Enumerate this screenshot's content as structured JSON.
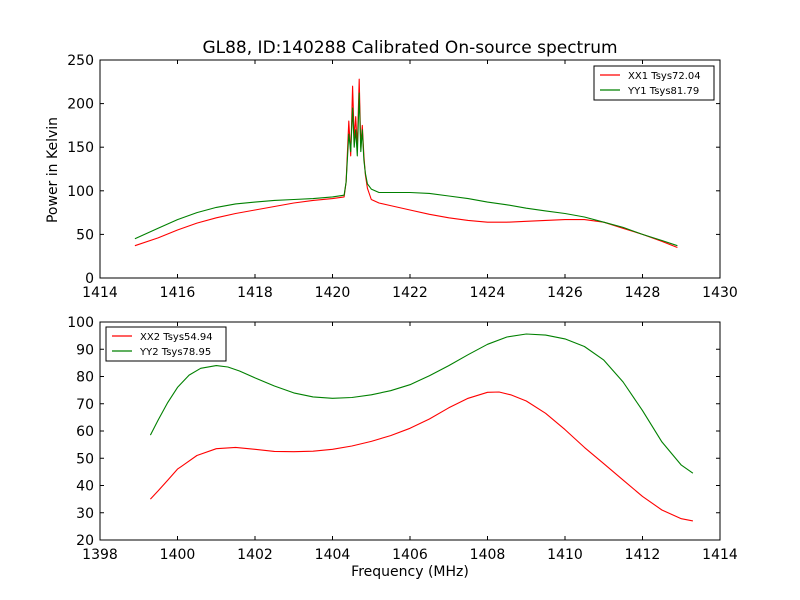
{
  "colors": {
    "red": "#ff0000",
    "green": "#008000"
  },
  "chart_data": [
    {
      "type": "line",
      "title": "GL88, ID:140288 Calibrated On-source spectrum",
      "xlabel": "",
      "ylabel": "Power in Kelvin",
      "xlim": [
        1414,
        1430
      ],
      "ylim": [
        0,
        250
      ],
      "xticks": [
        1414,
        1416,
        1418,
        1420,
        1422,
        1424,
        1426,
        1428,
        1430
      ],
      "yticks": [
        0,
        50,
        100,
        150,
        200,
        250
      ],
      "legend_position": "top-right",
      "series": [
        {
          "name": "XX1 Tsys72.04",
          "color": "#ff0000",
          "x": [
            1414.9,
            1415.5,
            1416.0,
            1416.5,
            1417.0,
            1417.5,
            1418.0,
            1418.5,
            1419.0,
            1419.5,
            1420.0,
            1420.3,
            1420.35,
            1420.42,
            1420.47,
            1420.52,
            1420.56,
            1420.6,
            1420.64,
            1420.69,
            1420.73,
            1420.77,
            1420.81,
            1420.85,
            1420.9,
            1421.0,
            1421.2,
            1421.5,
            1422.0,
            1422.5,
            1423.0,
            1423.5,
            1424.0,
            1424.5,
            1425.0,
            1425.5,
            1426.0,
            1426.5,
            1427.0,
            1427.5,
            1428.0,
            1428.5,
            1428.9
          ],
          "y": [
            37,
            46,
            55,
            63,
            69,
            74,
            78,
            82,
            86,
            89,
            91,
            93,
            110,
            180,
            140,
            220,
            160,
            185,
            150,
            228,
            150,
            175,
            140,
            118,
            103,
            90,
            86,
            83,
            78,
            73,
            69,
            66,
            64,
            64,
            65,
            66,
            67,
            67,
            64,
            57,
            50,
            42,
            35
          ]
        },
        {
          "name": "YY1 Tsys81.79",
          "color": "#008000",
          "x": [
            1414.9,
            1415.5,
            1416.0,
            1416.5,
            1417.0,
            1417.5,
            1418.0,
            1418.5,
            1419.0,
            1419.5,
            1420.0,
            1420.3,
            1420.35,
            1420.42,
            1420.47,
            1420.52,
            1420.56,
            1420.6,
            1420.64,
            1420.69,
            1420.73,
            1420.77,
            1420.81,
            1420.85,
            1420.9,
            1421.0,
            1421.2,
            1421.5,
            1422.0,
            1422.5,
            1423.0,
            1423.5,
            1424.0,
            1424.5,
            1425.0,
            1425.5,
            1426.0,
            1426.5,
            1427.0,
            1427.5,
            1428.0,
            1428.5,
            1428.9
          ],
          "y": [
            45,
            57,
            67,
            75,
            81,
            85,
            87,
            89,
            90,
            91,
            93,
            95,
            110,
            165,
            145,
            195,
            150,
            170,
            140,
            212,
            145,
            170,
            135,
            120,
            108,
            102,
            98,
            98,
            98,
            97,
            94,
            91,
            87,
            84,
            80,
            77,
            74,
            70,
            64,
            58,
            50,
            43,
            37
          ]
        }
      ]
    },
    {
      "type": "line",
      "title": "",
      "xlabel": "Frequency (MHz)",
      "ylabel": "",
      "xlim": [
        1398,
        1414
      ],
      "ylim": [
        20,
        100
      ],
      "xticks": [
        1398,
        1400,
        1402,
        1404,
        1406,
        1408,
        1410,
        1412,
        1414
      ],
      "yticks": [
        20,
        30,
        40,
        50,
        60,
        70,
        80,
        90,
        100
      ],
      "legend_position": "top-left",
      "series": [
        {
          "name": "XX2 Tsys54.94",
          "color": "#ff0000",
          "x": [
            1399.3,
            1399.5,
            1399.75,
            1400.0,
            1400.1,
            1400.2,
            1400.5,
            1401.0,
            1401.5,
            1402.0,
            1402.5,
            1403.0,
            1403.5,
            1404.0,
            1404.5,
            1405.0,
            1405.5,
            1406.0,
            1406.5,
            1407.0,
            1407.5,
            1408.0,
            1408.3,
            1408.6,
            1409.0,
            1409.5,
            1410.0,
            1410.5,
            1411.0,
            1411.5,
            1412.0,
            1412.5,
            1413.0,
            1413.3
          ],
          "y": [
            35,
            38,
            42,
            46,
            47,
            48,
            51,
            53.5,
            54,
            53.3,
            52.5,
            52.4,
            52.6,
            53.3,
            54.5,
            56.2,
            58.3,
            61,
            64.4,
            68.5,
            72,
            74.2,
            74.3,
            73.3,
            71,
            66.5,
            60.5,
            54,
            48,
            42,
            36,
            31,
            27.8,
            27
          ]
        },
        {
          "name": "YY2 Tsys78.95",
          "color": "#008000",
          "x": [
            1399.3,
            1399.5,
            1399.75,
            1400.0,
            1400.3,
            1400.6,
            1401.0,
            1401.3,
            1401.6,
            1402.0,
            1402.5,
            1403.0,
            1403.5,
            1404.0,
            1404.5,
            1405.0,
            1405.5,
            1406.0,
            1406.5,
            1407.0,
            1407.5,
            1408.0,
            1408.5,
            1409.0,
            1409.5,
            1410.0,
            1410.5,
            1411.0,
            1411.5,
            1412.0,
            1412.5,
            1413.0,
            1413.3
          ],
          "y": [
            58.5,
            64,
            70.5,
            76,
            80.5,
            83,
            84,
            83.5,
            82,
            79.5,
            76.5,
            74,
            72.5,
            72,
            72.3,
            73.3,
            74.8,
            77,
            80.3,
            84,
            88,
            91.8,
            94.5,
            95.6,
            95.2,
            93.8,
            91,
            86,
            78,
            67.5,
            56,
            47.5,
            44.5
          ]
        }
      ]
    }
  ]
}
